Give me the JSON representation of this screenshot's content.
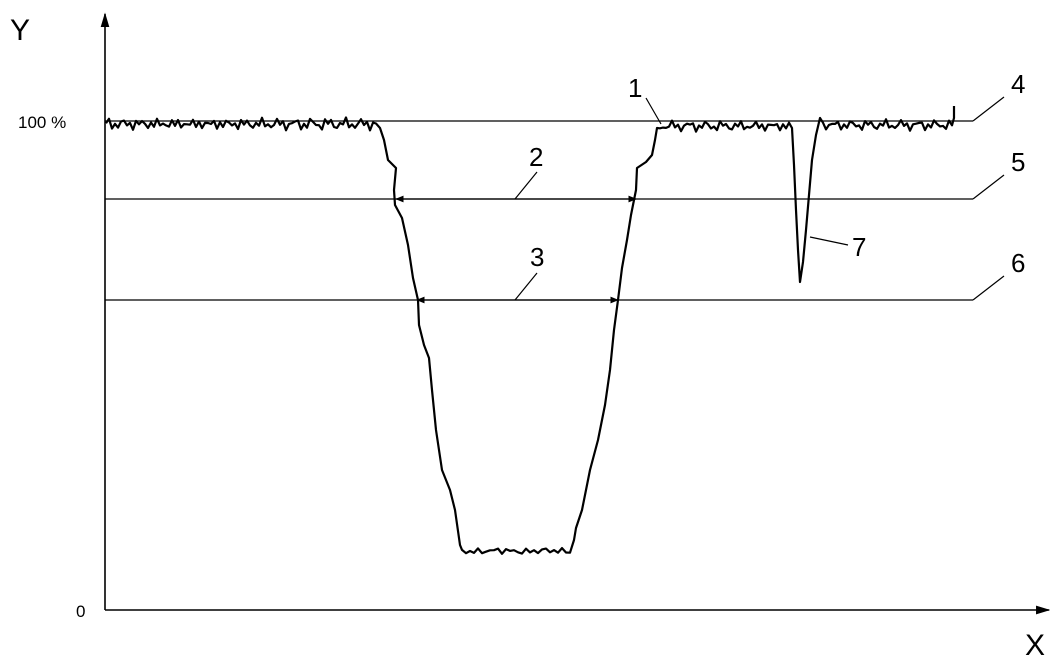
{
  "axes": {
    "y_label": "Y",
    "x_label": "X",
    "y_tick_top": "100 %",
    "y_tick_bottom": "0"
  },
  "reference_numerals": {
    "n1": "1",
    "n2": "2",
    "n3": "3",
    "n4": "4",
    "n5": "5",
    "n6": "6",
    "n7": "7"
  },
  "colors": {
    "ink": "#000000",
    "background": "#ffffff"
  }
}
